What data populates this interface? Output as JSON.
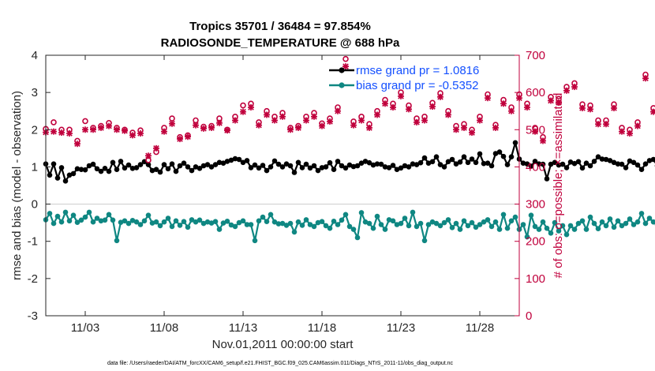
{
  "chart_data": {
    "type": "line",
    "title_line1": "Tropics 35701 / 36484 = 97.854%",
    "title_line2": "RADIOSONDE_TEMPERATURE @ 688 hPa",
    "xlabel": "Nov.01,2011 00:00:00 start",
    "ylabel_left": "rmse and bias (model - observation)",
    "ylabel_right": "# of obs: o=possible; ×=assimilated",
    "footer": "data file: /Users/raeder/DAI/ATM_forcXX/CAM6_setup/f.e21.FHIST_BGC.f09_025.CAM6assim.011/Diags_NTrS_2011-11/obs_diag_output.nc",
    "x_range": [
      0.5,
      30.5
    ],
    "x_ticks": [
      3,
      8,
      13,
      18,
      23,
      28
    ],
    "x_tick_labels": [
      "11/03",
      "11/08",
      "11/13",
      "11/18",
      "11/23",
      "11/28"
    ],
    "ylim_left": [
      -3,
      4
    ],
    "y_ticks_left": [
      -3,
      -2,
      -1,
      0,
      1,
      2,
      3,
      4
    ],
    "ylim_right": [
      0,
      700
    ],
    "y_ticks_right": [
      0,
      100,
      200,
      300,
      400,
      500,
      600,
      700
    ],
    "zero_line": true,
    "legend": [
      {
        "label": "rmse grand pr = 1.0816",
        "color": "#000000"
      },
      {
        "label": "bias grand pr = -0.5352",
        "color": "#0f8782"
      }
    ],
    "series": [
      {
        "name": "rmse",
        "axis": "left",
        "color": "#000000",
        "x_start": 0.5,
        "x_step": 0.25,
        "values": [
          1.08,
          0.78,
          1.08,
          0.7,
          0.98,
          0.62,
          0.78,
          0.82,
          0.95,
          0.93,
          0.92,
          1.03,
          1.07,
          0.95,
          0.88,
          0.96,
          0.88,
          1.12,
          0.93,
          1.15,
          0.97,
          1.05,
          0.96,
          0.98,
          1.06,
          1.14,
          1.06,
          0.9,
          0.93,
          0.86,
          1.06,
          0.95,
          1.08,
          0.88,
          1.03,
          1.1,
          1.0,
          0.9,
          1.0,
          0.96,
          1.03,
          1.06,
          1.0,
          1.06,
          1.12,
          1.1,
          1.15,
          1.18,
          1.22,
          1.2,
          1.12,
          1.17,
          0.98,
          1.05,
          0.97,
          1.04,
          0.9,
          1.0,
          1.16,
          1.07,
          1.0,
          1.08,
          1.03,
          0.85,
          1.12,
          0.98,
          1.07,
          0.97,
          1.03,
          0.9,
          0.98,
          1.0,
          1.11,
          0.93,
          1.15,
          1.03,
          0.97,
          1.05,
          1.01,
          1.03,
          1.1,
          1.15,
          1.11,
          1.05,
          1.08,
          1.07,
          1.0,
          0.98,
          1.04,
          0.93,
          0.97,
          1.03,
          1.0,
          1.08,
          1.06,
          1.11,
          1.24,
          1.1,
          1.14,
          1.27,
          1.06,
          1.0,
          1.14,
          1.2,
          1.08,
          1.13,
          1.27,
          1.12,
          1.21,
          1.12,
          1.35,
          1.09,
          1.1,
          1.03,
          1.36,
          1.4,
          1.28,
          1.06,
          1.27,
          1.65,
          1.21,
          1.1,
          1.08,
          1.02,
          1.15,
          1.08,
          1.07,
          0.68,
          1.07,
          1.12,
          1.05,
          1.07,
          0.98,
          1.13,
          1.09,
          1.14,
          0.97,
          1.1,
          1.03,
          1.15,
          1.27,
          1.21,
          1.2,
          1.17,
          1.12,
          1.08,
          1.07,
          0.98,
          1.16,
          1.12,
          1.05,
          0.93,
          1.08,
          1.17,
          1.2,
          1.03,
          1.2,
          1.18,
          1.05
        ]
      },
      {
        "name": "bias",
        "axis": "left",
        "color": "#0f8782",
        "x_start": 0.5,
        "x_step": 0.25,
        "values": [
          -0.42,
          -0.25,
          -0.52,
          -0.33,
          -0.48,
          -0.22,
          -0.45,
          -0.3,
          -0.49,
          -0.43,
          -0.35,
          -0.22,
          -0.48,
          -0.38,
          -0.45,
          -0.43,
          -0.28,
          -0.43,
          -0.98,
          -0.49,
          -0.45,
          -0.52,
          -0.44,
          -0.48,
          -0.55,
          -0.45,
          -0.3,
          -0.51,
          -0.48,
          -0.58,
          -0.48,
          -0.38,
          -0.6,
          -0.45,
          -0.57,
          -0.47,
          -0.62,
          -0.42,
          -0.48,
          -0.43,
          -0.52,
          -0.48,
          -0.51,
          -0.47,
          -0.68,
          -0.51,
          -0.46,
          -0.56,
          -0.6,
          -0.5,
          -0.45,
          -0.55,
          -0.55,
          -0.98,
          -0.45,
          -0.35,
          -0.47,
          -0.28,
          -0.48,
          -0.53,
          -0.52,
          -0.57,
          -0.52,
          -0.75,
          -0.48,
          -0.57,
          -0.42,
          -0.55,
          -0.6,
          -0.5,
          -0.47,
          -0.58,
          -0.65,
          -0.46,
          -0.55,
          -0.43,
          -0.28,
          -0.6,
          -0.68,
          -0.9,
          -0.23,
          -0.48,
          -0.52,
          -0.65,
          -0.33,
          -0.55,
          -0.68,
          -0.42,
          -0.45,
          -0.55,
          -0.52,
          -0.38,
          -0.58,
          -0.22,
          -0.6,
          -0.52,
          -0.98,
          -0.55,
          -0.48,
          -0.52,
          -0.58,
          -0.5,
          -0.42,
          -0.63,
          -0.52,
          -0.68,
          -0.45,
          -0.58,
          -0.5,
          -0.62,
          -0.55,
          -0.48,
          -0.42,
          -0.6,
          -0.48,
          -0.68,
          -0.28,
          -0.65,
          -0.45,
          -0.35,
          -0.68,
          -0.55,
          -0.88,
          -0.3,
          -0.6,
          -0.68,
          -0.48,
          -0.65,
          -0.78,
          -0.5,
          -0.72,
          -0.58,
          -0.82,
          -0.58,
          -0.68,
          -0.52,
          -0.45,
          -0.68,
          -0.35,
          -0.52,
          -0.66,
          -0.48,
          -0.58,
          -0.4,
          -0.62,
          -0.45,
          -0.58,
          -0.52,
          -0.4,
          -0.55,
          -0.48,
          -0.25,
          -0.52,
          -0.38,
          -0.48,
          -0.55,
          -0.45,
          -0.55,
          -0.62,
          -0.48,
          -0.35,
          -0.95,
          -0.5,
          -0.48
        ]
      }
    ],
    "obs_possible": {
      "axis": "right",
      "color": "#c0003c",
      "marker": "o",
      "x_start": 0.5,
      "x_step": 0.5,
      "values": [
        502,
        520,
        500,
        500,
        470,
        523,
        505,
        510,
        518,
        505,
        500,
        492,
        498,
        418,
        440,
        505,
        530,
        480,
        485,
        525,
        508,
        510,
        530,
        500,
        535,
        565,
        570,
        520,
        550,
        535,
        545,
        505,
        510,
        535,
        545,
        517,
        530,
        560,
        690,
        522,
        535,
        515,
        550,
        580,
        570,
        600,
        565,
        530,
        535,
        572,
        598,
        550,
        510,
        515,
        500,
        535,
        595,
        513,
        580,
        560,
        595,
        570,
        505,
        480,
        588,
        583,
        615,
        625,
        568,
        565,
        525,
        525,
        568,
        505,
        500,
        520,
        648,
        558,
        545,
        510,
        550,
        600,
        522,
        580,
        590,
        600,
        560,
        548,
        550,
        600,
        515,
        565,
        545,
        585,
        478,
        470,
        485,
        505,
        600,
        585
      ]
    },
    "obs_assimilated": {
      "axis": "right",
      "color": "#c0003c",
      "marker": "x",
      "x_start": 0.5,
      "x_step": 0.5,
      "values": [
        493,
        495,
        492,
        490,
        462,
        500,
        500,
        505,
        510,
        500,
        497,
        485,
        490,
        430,
        450,
        495,
        516,
        475,
        481,
        512,
        503,
        505,
        518,
        498,
        525,
        548,
        560,
        512,
        540,
        525,
        535,
        500,
        505,
        525,
        535,
        510,
        522,
        550,
        670,
        512,
        525,
        505,
        540,
        570,
        560,
        590,
        555,
        520,
        525,
        562,
        588,
        540,
        500,
        505,
        492,
        525,
        585,
        505,
        570,
        550,
        585,
        560,
        495,
        470,
        578,
        573,
        605,
        615,
        558,
        555,
        515,
        515,
        558,
        495,
        490,
        510,
        638,
        548,
        535,
        500,
        540,
        590,
        512,
        570,
        580,
        590,
        550,
        538,
        540,
        590,
        505,
        555,
        535,
        575,
        468,
        460,
        475,
        495,
        590,
        575
      ]
    }
  }
}
